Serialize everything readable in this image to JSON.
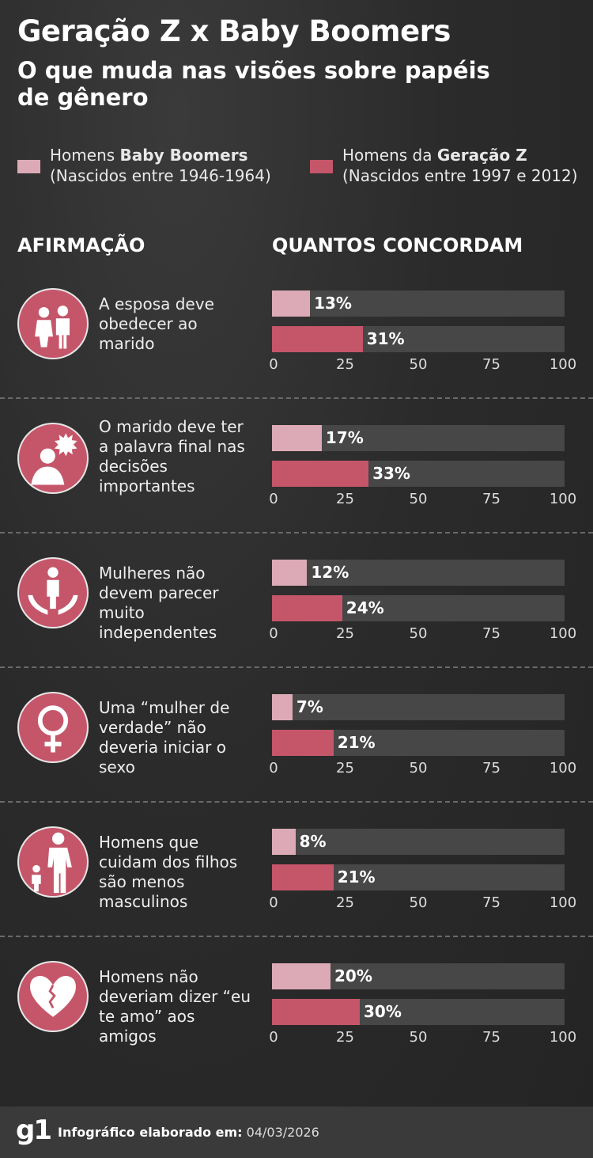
{
  "header": {
    "title": "Geração Z x Baby Boomers",
    "subtitle": "O que muda nas visões sobre papéis de gênero"
  },
  "legend": [
    {
      "prefix": "Homens ",
      "bold": "Baby Boomers",
      "detail": "(Nascidos entre 1946-1964)",
      "color": "#dcaab6"
    },
    {
      "prefix": "Homens da ",
      "bold": "Geração Z",
      "detail": "(Nascidos entre 1997 e 2012)",
      "color": "#c5566a"
    }
  ],
  "columns": {
    "statement": "AFIRMAÇÃO",
    "agree": "QUANTOS CONCORDAM"
  },
  "chart_data": {
    "type": "bar",
    "orientation": "horizontal",
    "xlim": [
      0,
      100
    ],
    "ticks": [
      "0",
      "25",
      "50",
      "75",
      "100"
    ],
    "series": [
      {
        "name": "Homens Baby Boomers (Nascidos entre 1946-1964)",
        "color": "#dcaab6"
      },
      {
        "name": "Homens da Geração Z (Nascidos entre 1997 e 2012)",
        "color": "#c5566a"
      }
    ],
    "items": [
      {
        "statement": "A esposa deve obedecer ao marido",
        "icon": "couple-icon",
        "values": [
          13,
          31
        ],
        "labels": [
          "13%",
          "31%"
        ]
      },
      {
        "statement": "O marido deve ter a palavra final nas decisões importantes",
        "icon": "speaking-man-icon",
        "values": [
          17,
          33
        ],
        "labels": [
          "17%",
          "33%"
        ]
      },
      {
        "statement": "Mulheres não devem parecer muito independentes",
        "icon": "hands-holding-person-icon",
        "values": [
          12,
          24
        ],
        "labels": [
          "12%",
          "24%"
        ]
      },
      {
        "statement": "Uma “mulher de verdade” não deveria iniciar o sexo",
        "icon": "female-symbol-icon",
        "values": [
          7,
          21
        ],
        "labels": [
          "7%",
          "21%"
        ]
      },
      {
        "statement": "Homens que cuidam dos filhos são menos masculinos",
        "icon": "father-child-icon",
        "values": [
          8,
          21
        ],
        "labels": [
          "8%",
          "21%"
        ]
      },
      {
        "statement": "Homens não deveriam dizer “eu te amo” aos amigos",
        "icon": "broken-heart-icon",
        "values": [
          20,
          30
        ],
        "labels": [
          "20%",
          "30%"
        ]
      }
    ]
  },
  "footer": {
    "logo": "g1",
    "label": "Infográfico elaborado em:",
    "date": "04/03/2026"
  }
}
